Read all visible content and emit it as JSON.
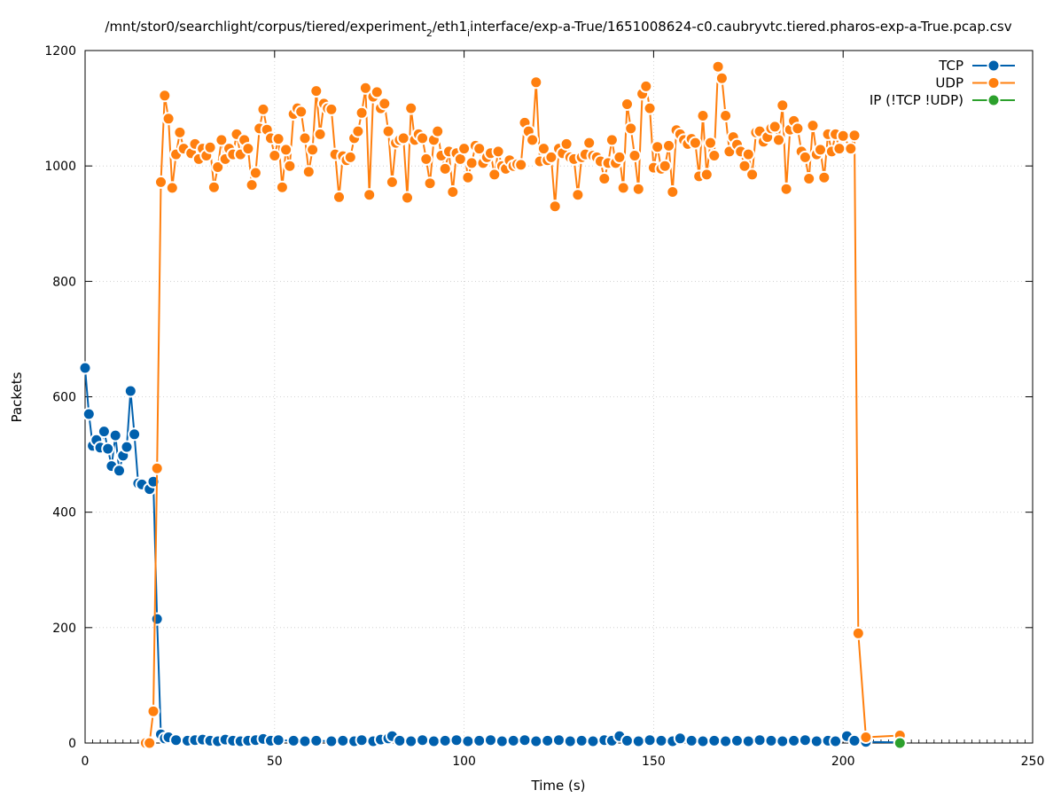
{
  "chart_data": {
    "type": "line",
    "title": "/mnt/stor0/searchlight/corpus/tiered/experiment_2/eth1_interface/exp-a-True/1651008624-c0.caubryvtc.tiered.pharos-exp-a-True.pcap.csv",
    "title_parts": [
      "/mnt/stor0/searchlight/corpus/tiered/experiment",
      "2",
      "/eth1",
      "interface/exp-a-True/1651008624-c0.caubryvtc.tiered.pharos-exp-a-True.pcap.csv"
    ],
    "xlabel": "Time (s)",
    "ylabel": "Packets",
    "xlim": [
      0,
      250
    ],
    "ylim": [
      0,
      1200
    ],
    "x_ticks": [
      "0",
      "50",
      "100",
      "150",
      "200",
      "250"
    ],
    "y_ticks": [
      "0",
      "200",
      "400",
      "600",
      "800",
      "1000",
      "1200"
    ],
    "grid": true,
    "legend_position": "top-right",
    "series": [
      {
        "name": "TCP",
        "color": "#0060ad",
        "points": [
          [
            0,
            650
          ],
          [
            1,
            570
          ],
          [
            2,
            515
          ],
          [
            3,
            525
          ],
          [
            4,
            512
          ],
          [
            5,
            540
          ],
          [
            6,
            510
          ],
          [
            7,
            480
          ],
          [
            8,
            533
          ],
          [
            9,
            472
          ],
          [
            10,
            498
          ],
          [
            11,
            513
          ],
          [
            12,
            610
          ],
          [
            13,
            535
          ],
          [
            14,
            450
          ],
          [
            15,
            448
          ],
          [
            17,
            440
          ],
          [
            18,
            453
          ],
          [
            19,
            215
          ],
          [
            20,
            15
          ],
          [
            21,
            8
          ],
          [
            22,
            10
          ],
          [
            24,
            5
          ],
          [
            27,
            4
          ],
          [
            29,
            5
          ],
          [
            31,
            6
          ],
          [
            33,
            4
          ],
          [
            35,
            3
          ],
          [
            37,
            6
          ],
          [
            39,
            4
          ],
          [
            41,
            3
          ],
          [
            43,
            4
          ],
          [
            45,
            5
          ],
          [
            47,
            7
          ],
          [
            49,
            4
          ],
          [
            51,
            5
          ],
          [
            55,
            4
          ],
          [
            58,
            3
          ],
          [
            61,
            4
          ],
          [
            65,
            3
          ],
          [
            68,
            4
          ],
          [
            71,
            3
          ],
          [
            73,
            5
          ],
          [
            76,
            3
          ],
          [
            78,
            6
          ],
          [
            80,
            8
          ],
          [
            81,
            12
          ],
          [
            83,
            4
          ],
          [
            86,
            3
          ],
          [
            89,
            5
          ],
          [
            92,
            3
          ],
          [
            95,
            4
          ],
          [
            98,
            5
          ],
          [
            101,
            3
          ],
          [
            104,
            4
          ],
          [
            107,
            5
          ],
          [
            110,
            3
          ],
          [
            113,
            4
          ],
          [
            116,
            5
          ],
          [
            119,
            3
          ],
          [
            122,
            4
          ],
          [
            125,
            5
          ],
          [
            128,
            3
          ],
          [
            131,
            4
          ],
          [
            134,
            3
          ],
          [
            137,
            5
          ],
          [
            139,
            4
          ],
          [
            141,
            12
          ],
          [
            143,
            4
          ],
          [
            146,
            3
          ],
          [
            149,
            5
          ],
          [
            152,
            4
          ],
          [
            155,
            3
          ],
          [
            157,
            8
          ],
          [
            160,
            4
          ],
          [
            163,
            3
          ],
          [
            166,
            4
          ],
          [
            169,
            3
          ],
          [
            172,
            4
          ],
          [
            175,
            3
          ],
          [
            178,
            5
          ],
          [
            181,
            4
          ],
          [
            184,
            3
          ],
          [
            187,
            4
          ],
          [
            190,
            5
          ],
          [
            193,
            3
          ],
          [
            196,
            4
          ],
          [
            198,
            3
          ],
          [
            201,
            12
          ],
          [
            203,
            4
          ],
          [
            206,
            2
          ],
          [
            215,
            1
          ]
        ]
      },
      {
        "name": "UDP",
        "color": "#ff7f0e",
        "points": [
          [
            16,
            0
          ],
          [
            17,
            0
          ],
          [
            18,
            55
          ],
          [
            19,
            476
          ],
          [
            20,
            972
          ],
          [
            21,
            1122
          ],
          [
            22,
            1082
          ],
          [
            23,
            962
          ],
          [
            24,
            1020
          ],
          [
            25,
            1058
          ],
          [
            26,
            1030
          ],
          [
            28,
            1022
          ],
          [
            29,
            1038
          ],
          [
            30,
            1012
          ],
          [
            31,
            1030
          ],
          [
            32,
            1018
          ],
          [
            33,
            1032
          ],
          [
            34,
            963
          ],
          [
            35,
            998
          ],
          [
            36,
            1045
          ],
          [
            37,
            1012
          ],
          [
            38,
            1030
          ],
          [
            39,
            1020
          ],
          [
            40,
            1055
          ],
          [
            41,
            1020
          ],
          [
            42,
            1045
          ],
          [
            43,
            1030
          ],
          [
            44,
            967
          ],
          [
            45,
            988
          ],
          [
            46,
            1065
          ],
          [
            47,
            1098
          ],
          [
            48,
            1063
          ],
          [
            49,
            1048
          ],
          [
            50,
            1018
          ],
          [
            51,
            1047
          ],
          [
            52,
            963
          ],
          [
            53,
            1028
          ],
          [
            54,
            1000
          ],
          [
            55,
            1090
          ],
          [
            56,
            1100
          ],
          [
            57,
            1094
          ],
          [
            58,
            1048
          ],
          [
            59,
            990
          ],
          [
            60,
            1028
          ],
          [
            61,
            1130
          ],
          [
            62,
            1055
          ],
          [
            63,
            1108
          ],
          [
            64,
            1100
          ],
          [
            65,
            1098
          ],
          [
            66,
            1020
          ],
          [
            67,
            946
          ],
          [
            68,
            1017
          ],
          [
            69,
            1010
          ],
          [
            70,
            1015
          ],
          [
            71,
            1048
          ],
          [
            72,
            1060
          ],
          [
            73,
            1092
          ],
          [
            74,
            1135
          ],
          [
            75,
            950
          ],
          [
            76,
            1120
          ],
          [
            77,
            1128
          ],
          [
            78,
            1100
          ],
          [
            79,
            1108
          ],
          [
            80,
            1060
          ],
          [
            81,
            972
          ],
          [
            82,
            1040
          ],
          [
            83,
            1045
          ],
          [
            84,
            1048
          ],
          [
            85,
            945
          ],
          [
            86,
            1100
          ],
          [
            87,
            1045
          ],
          [
            88,
            1055
          ],
          [
            89,
            1048
          ],
          [
            90,
            1012
          ],
          [
            91,
            970
          ],
          [
            92,
            1045
          ],
          [
            93,
            1060
          ],
          [
            94,
            1018
          ],
          [
            95,
            995
          ],
          [
            96,
            1025
          ],
          [
            97,
            955
          ],
          [
            98,
            1022
          ],
          [
            99,
            1012
          ],
          [
            100,
            1030
          ],
          [
            101,
            980
          ],
          [
            102,
            1005
          ],
          [
            103,
            1035
          ],
          [
            104,
            1030
          ],
          [
            105,
            1005
          ],
          [
            106,
            1015
          ],
          [
            107,
            1022
          ],
          [
            108,
            985
          ],
          [
            109,
            1025
          ],
          [
            110,
            1000
          ],
          [
            111,
            995
          ],
          [
            112,
            1010
          ],
          [
            113,
            1000
          ],
          [
            114,
            1003
          ],
          [
            115,
            1002
          ],
          [
            116,
            1075
          ],
          [
            117,
            1060
          ],
          [
            118,
            1045
          ],
          [
            119,
            1145
          ],
          [
            120,
            1008
          ],
          [
            121,
            1030
          ],
          [
            122,
            1010
          ],
          [
            123,
            1015
          ],
          [
            124,
            930
          ],
          [
            125,
            1030
          ],
          [
            126,
            1022
          ],
          [
            127,
            1038
          ],
          [
            128,
            1015
          ],
          [
            129,
            1012
          ],
          [
            130,
            950
          ],
          [
            131,
            1015
          ],
          [
            132,
            1020
          ],
          [
            133,
            1040
          ],
          [
            134,
            1018
          ],
          [
            135,
            1015
          ],
          [
            136,
            1008
          ],
          [
            137,
            978
          ],
          [
            138,
            1005
          ],
          [
            139,
            1045
          ],
          [
            140,
            1005
          ],
          [
            141,
            1015
          ],
          [
            142,
            962
          ],
          [
            143,
            1107
          ],
          [
            144,
            1065
          ],
          [
            145,
            1018
          ],
          [
            146,
            960
          ],
          [
            147,
            1125
          ],
          [
            148,
            1138
          ],
          [
            149,
            1100
          ],
          [
            150,
            997
          ],
          [
            151,
            1033
          ],
          [
            152,
            995
          ],
          [
            153,
            1000
          ],
          [
            154,
            1035
          ],
          [
            155,
            955
          ],
          [
            156,
            1062
          ],
          [
            157,
            1055
          ],
          [
            158,
            1045
          ],
          [
            159,
            1038
          ],
          [
            160,
            1047
          ],
          [
            161,
            1040
          ],
          [
            162,
            982
          ],
          [
            163,
            1087
          ],
          [
            164,
            985
          ],
          [
            165,
            1040
          ],
          [
            166,
            1018
          ],
          [
            167,
            1172
          ],
          [
            168,
            1152
          ],
          [
            169,
            1087
          ],
          [
            170,
            1025
          ],
          [
            171,
            1050
          ],
          [
            172,
            1037
          ],
          [
            173,
            1025
          ],
          [
            174,
            1000
          ],
          [
            175,
            1020
          ],
          [
            176,
            985
          ],
          [
            177,
            1058
          ],
          [
            178,
            1060
          ],
          [
            179,
            1042
          ],
          [
            180,
            1050
          ],
          [
            181,
            1065
          ],
          [
            182,
            1068
          ],
          [
            183,
            1045
          ],
          [
            184,
            1105
          ],
          [
            185,
            960
          ],
          [
            186,
            1063
          ],
          [
            187,
            1078
          ],
          [
            188,
            1065
          ],
          [
            189,
            1025
          ],
          [
            190,
            1015
          ],
          [
            191,
            978
          ],
          [
            192,
            1070
          ],
          [
            193,
            1020
          ],
          [
            194,
            1028
          ],
          [
            195,
            980
          ],
          [
            196,
            1055
          ],
          [
            197,
            1025
          ],
          [
            198,
            1055
          ],
          [
            199,
            1030
          ],
          [
            200,
            1052
          ],
          [
            202,
            1030
          ],
          [
            203,
            1053
          ],
          [
            204,
            190
          ],
          [
            206,
            10
          ],
          [
            215,
            13
          ]
        ]
      },
      {
        "name": "IP (!TCP  !UDP)",
        "color": "#2ca02c",
        "points": [
          [
            215,
            0
          ]
        ]
      }
    ]
  }
}
